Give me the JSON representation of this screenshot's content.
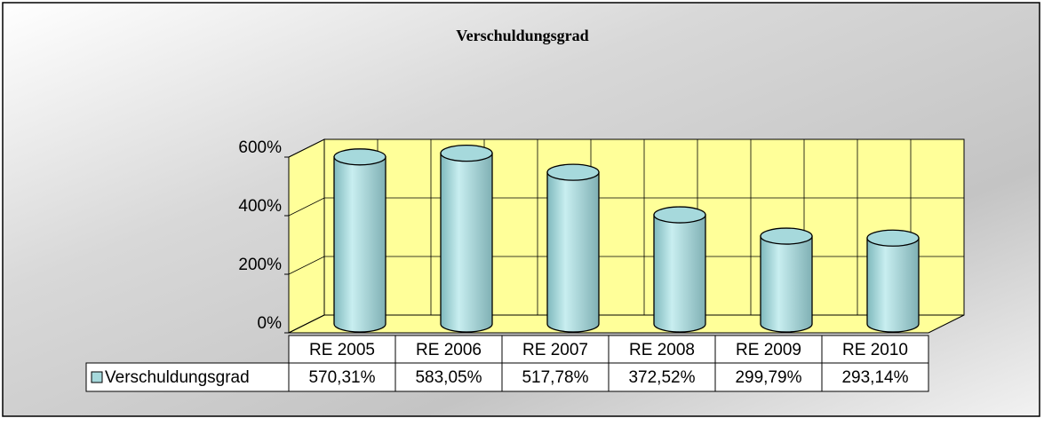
{
  "chart_data": {
    "type": "bar3d",
    "title": "Verschuldungsgrad",
    "categories": [
      "RE 2005",
      "RE 2006",
      "RE 2007",
      "RE 2008",
      "RE 2009",
      "RE 2010"
    ],
    "series": [
      {
        "name": "Verschuldungsgrad",
        "color": "#a6d9dc",
        "values": [
          570.31,
          583.05,
          517.78,
          372.52,
          299.79,
          293.14
        ],
        "value_labels": [
          "570,31%",
          "583,05%",
          "517,78%",
          "372,52%",
          "299,79%",
          "293,14%"
        ]
      }
    ],
    "ylim": [
      0,
      600
    ],
    "yticks": [
      {
        "value": 0,
        "label": "0%"
      },
      {
        "value": 200,
        "label": "200%"
      },
      {
        "value": 400,
        "label": "400%"
      },
      {
        "value": 600,
        "label": "600%"
      }
    ],
    "grid": true,
    "wall_color": "#ffff99"
  }
}
